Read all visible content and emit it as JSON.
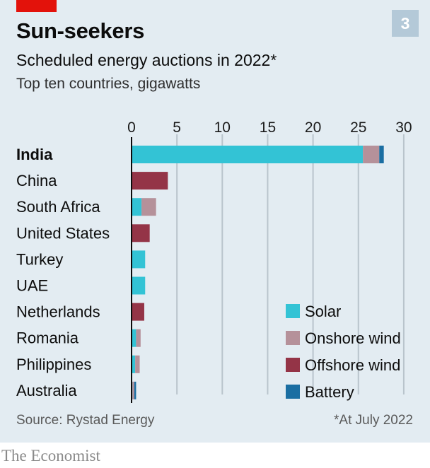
{
  "header": {
    "title": "Sun-seekers",
    "badge": "3",
    "subtitle": "Scheduled energy auctions in 2022*",
    "subtitle2": "Top ten countries, gigawatts"
  },
  "footer": {
    "source": "Source: Rystad Energy",
    "note": "*At July 2022",
    "brand": "The Economist"
  },
  "colors": {
    "solar": "#33c3d5",
    "onshore": "#b5919a",
    "offshore": "#943447",
    "battery": "#1a6ea2",
    "grid": "#b9c4cc",
    "brand_red": "#e3120b"
  },
  "chart_data": {
    "type": "bar",
    "orientation": "horizontal",
    "stacked": true,
    "xlim": [
      0,
      30
    ],
    "xticks": [
      0,
      5,
      10,
      15,
      20,
      25,
      30
    ],
    "grid": true,
    "legend_position": "bottom-right",
    "categories": [
      "India",
      "China",
      "South Africa",
      "United States",
      "Turkey",
      "UAE",
      "Netherlands",
      "Romania",
      "Philippines",
      "Australia"
    ],
    "highlight_category": "India",
    "series": [
      {
        "name": "Solar",
        "values": [
          25.5,
          0,
          1.1,
          0,
          1.5,
          1.5,
          0,
          0.5,
          0.4,
          0.1
        ]
      },
      {
        "name": "Onshore wind",
        "values": [
          1.8,
          0,
          1.6,
          0,
          0,
          0,
          0,
          0.5,
          0.5,
          0.2
        ]
      },
      {
        "name": "Offshore wind",
        "values": [
          0,
          4.0,
          0,
          2.0,
          0,
          0,
          1.4,
          0,
          0,
          0
        ]
      },
      {
        "name": "Battery",
        "values": [
          0.5,
          0,
          0,
          0,
          0,
          0,
          0,
          0,
          0,
          0.2
        ]
      }
    ]
  }
}
